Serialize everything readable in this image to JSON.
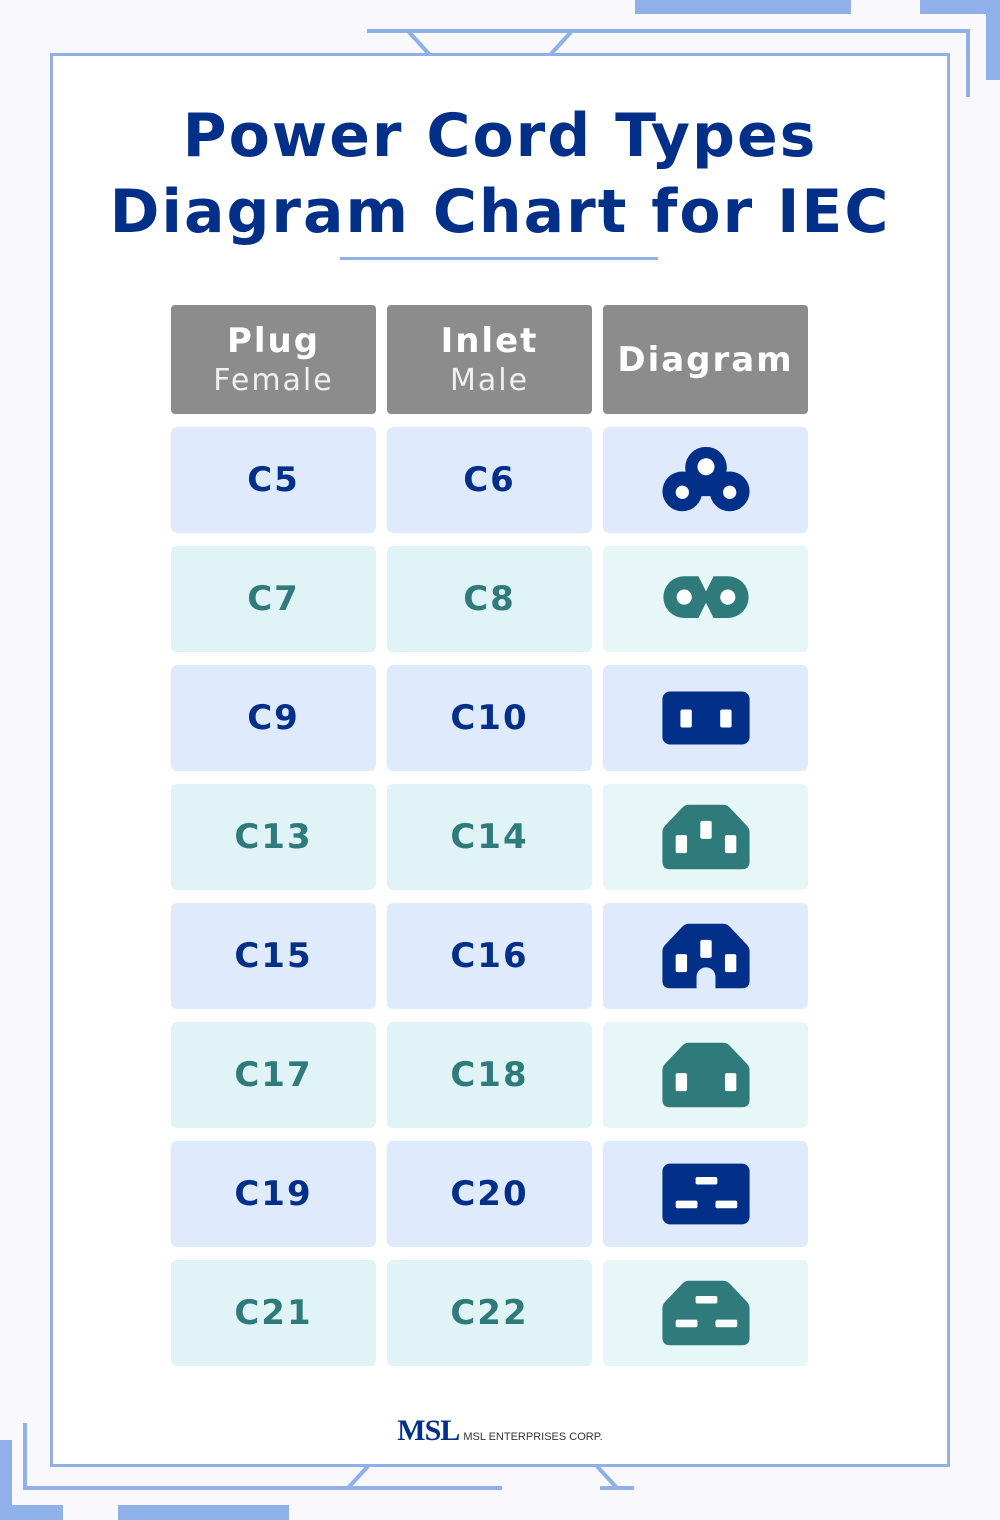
{
  "title": {
    "line1": "Power Cord Types",
    "line2": "Diagram Chart for IEC"
  },
  "headers": [
    {
      "main": "Plug",
      "sub": "Female"
    },
    {
      "main": "Inlet",
      "sub": "Male"
    },
    {
      "main": "Diagram",
      "sub": ""
    }
  ],
  "rows": [
    {
      "plug": "C5",
      "inlet": "C6",
      "icon": "cloverleaf-3-pin-connector-icon"
    },
    {
      "plug": "C7",
      "inlet": "C8",
      "icon": "figure-8-2-pin-connector-icon"
    },
    {
      "plug": "C9",
      "inlet": "C10",
      "icon": "rectangular-2-pin-connector-icon"
    },
    {
      "plug": "C13",
      "inlet": "C14",
      "icon": "chamfered-3-pin-connector-icon"
    },
    {
      "plug": "C15",
      "inlet": "C16",
      "icon": "notched-chamfered-3-pin-connector-icon"
    },
    {
      "plug": "C17",
      "inlet": "C18",
      "icon": "chamfered-2-pin-connector-icon"
    },
    {
      "plug": "C19",
      "inlet": "C20",
      "icon": "rectangular-3-slot-connector-icon"
    },
    {
      "plug": "C21",
      "inlet": "C22",
      "icon": "chamfered-3-slot-connector-icon"
    }
  ],
  "footer": {
    "logo": "MSL",
    "company": "MSL ENTERPRISES CORP."
  },
  "colors": {
    "navy": "#023089",
    "teal": "#2f7a7b",
    "frame": "#8fb0e8",
    "header": "#8c8c8c",
    "blue_cell": "#dfeafd",
    "teal_cell": "#e0f4f7"
  }
}
